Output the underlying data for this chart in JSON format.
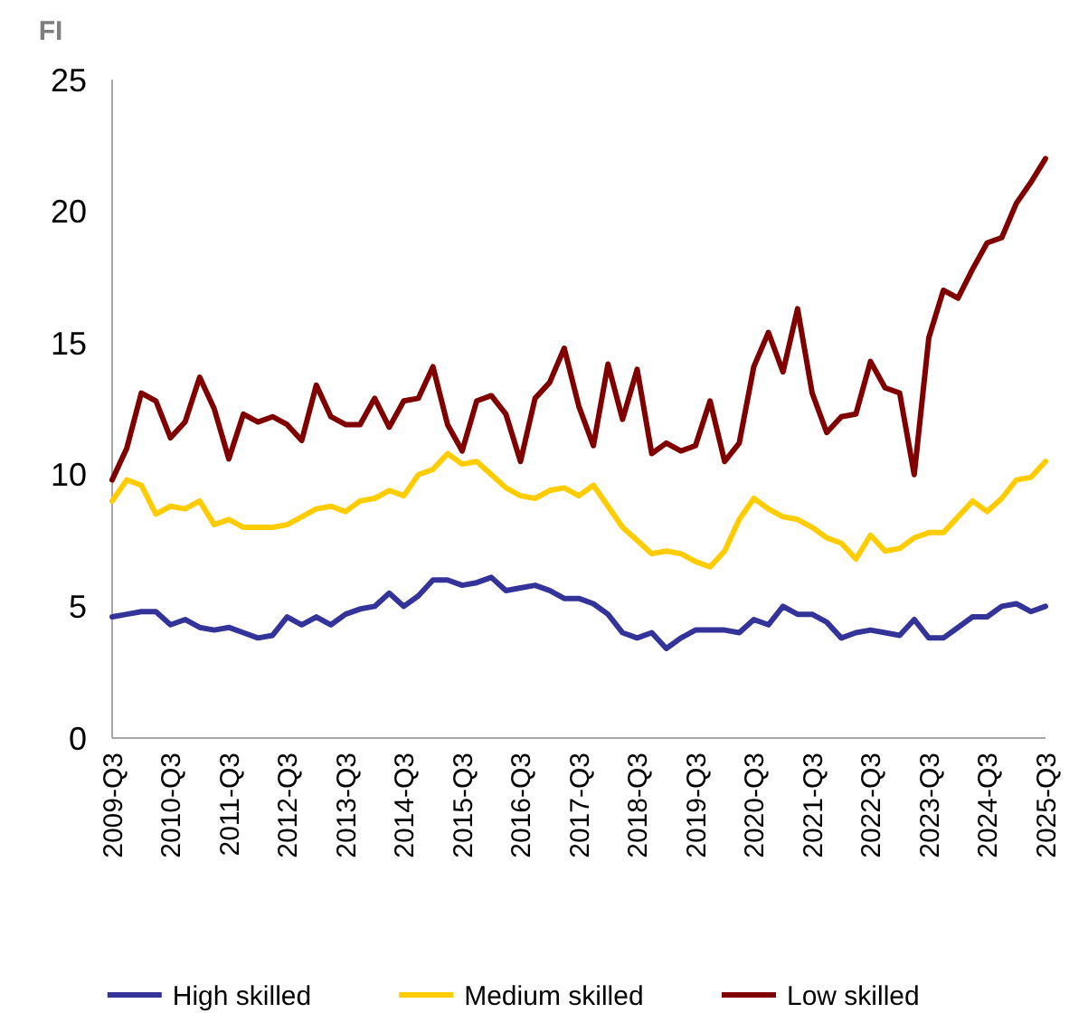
{
  "chart_data": {
    "type": "line",
    "ylabel": "FI",
    "ylim": [
      0,
      25
    ],
    "yticks": [
      0,
      5,
      10,
      15,
      20,
      25
    ],
    "grid": false,
    "legend": "bottom",
    "marker": "none",
    "line_style": "solid",
    "categories": [
      "2009-Q3",
      null,
      null,
      null,
      "2010-Q3",
      null,
      null,
      null,
      "2011-Q3",
      null,
      null,
      null,
      "2012-Q3",
      null,
      null,
      null,
      "2013-Q3",
      null,
      null,
      null,
      "2014-Q3",
      null,
      null,
      null,
      "2015-Q3",
      null,
      null,
      null,
      "2016-Q3",
      null,
      null,
      null,
      "2017-Q3",
      null,
      null,
      null,
      "2018-Q3",
      null,
      null,
      null,
      "2019-Q3",
      null,
      null,
      null,
      "2020-Q3",
      null,
      null,
      null,
      "2021-Q3",
      null,
      null,
      null,
      "2022-Q3",
      null,
      null,
      null,
      "2023-Q3",
      null,
      null,
      null,
      "2024-Q3",
      null,
      null,
      null,
      "2025-Q3"
    ],
    "series": [
      {
        "name": "High skilled",
        "color": "#333399",
        "values": [
          4.6,
          4.7,
          4.8,
          4.8,
          4.3,
          4.5,
          4.2,
          4.1,
          4.2,
          4.0,
          3.8,
          3.9,
          4.6,
          4.3,
          4.6,
          4.3,
          4.7,
          4.9,
          5.0,
          5.5,
          5.0,
          5.4,
          6.0,
          6.0,
          5.8,
          5.9,
          6.1,
          5.6,
          5.7,
          5.8,
          5.6,
          5.3,
          5.3,
          5.1,
          4.7,
          4.0,
          3.8,
          4.0,
          3.4,
          3.8,
          4.1,
          4.1,
          4.1,
          4.0,
          4.5,
          4.3,
          5.0,
          4.7,
          4.7,
          4.4,
          3.8,
          4.0,
          4.1,
          4.0,
          3.9,
          4.5,
          3.8,
          3.8,
          4.2,
          4.6,
          4.6,
          5.0,
          5.1,
          4.8,
          5.0
        ]
      },
      {
        "name": "Medium skilled",
        "color": "#ffcc00",
        "values": [
          9.0,
          9.8,
          9.6,
          8.5,
          8.8,
          8.7,
          9.0,
          8.1,
          8.3,
          8.0,
          8.0,
          8.0,
          8.1,
          8.4,
          8.7,
          8.8,
          8.6,
          9.0,
          9.1,
          9.4,
          9.2,
          10.0,
          10.2,
          10.8,
          10.4,
          10.5,
          10.0,
          9.5,
          9.2,
          9.1,
          9.4,
          9.5,
          9.2,
          9.6,
          8.8,
          8.0,
          7.5,
          7.0,
          7.1,
          7.0,
          6.7,
          6.5,
          7.1,
          8.3,
          9.1,
          8.7,
          8.4,
          8.3,
          8.0,
          7.6,
          7.4,
          6.8,
          7.7,
          7.1,
          7.2,
          7.6,
          7.8,
          7.8,
          8.4,
          9.0,
          8.6,
          9.1,
          9.8,
          9.9,
          10.5
        ]
      },
      {
        "name": "Low skilled",
        "color": "#800000",
        "values": [
          9.8,
          11.0,
          13.1,
          12.8,
          11.4,
          12.0,
          13.7,
          12.5,
          10.6,
          12.3,
          12.0,
          12.2,
          11.9,
          11.3,
          13.4,
          12.2,
          11.9,
          11.9,
          12.9,
          11.8,
          12.8,
          12.9,
          14.1,
          11.9,
          10.9,
          12.8,
          13.0,
          12.3,
          10.5,
          12.9,
          13.5,
          14.8,
          12.6,
          11.1,
          14.2,
          12.1,
          14.0,
          10.8,
          11.2,
          10.9,
          11.1,
          12.8,
          10.5,
          11.2,
          14.1,
          15.4,
          13.9,
          16.3,
          13.1,
          11.6,
          12.2,
          12.3,
          14.3,
          13.3,
          13.1,
          10.0,
          15.2,
          17.0,
          16.7,
          17.8,
          18.8,
          19.0,
          20.3,
          21.1,
          22.0
        ]
      }
    ]
  }
}
